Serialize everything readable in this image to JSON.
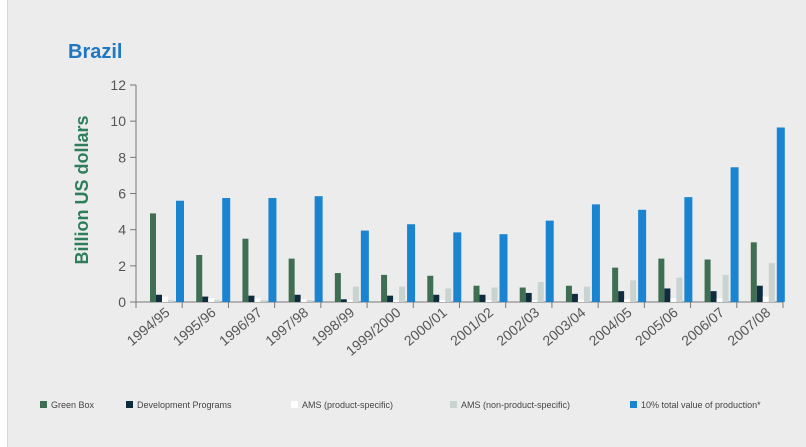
{
  "colors": {
    "title": "#1f78c1",
    "axis_label": "#2e7d5b",
    "green_box": "#3f6e52",
    "development_programs": "#0f2c3f",
    "ams_product_specific": "#ffffff",
    "ams_non_product_specific": "#c9d3d0",
    "ten_percent_total": "#1a84d0"
  },
  "chart_data": {
    "type": "bar",
    "title": "Brazil",
    "xlabel": "",
    "ylabel": "Billion US dollars",
    "ylim": [
      0,
      12
    ],
    "yticks": [
      0,
      2,
      4,
      6,
      8,
      10,
      12
    ],
    "grid": false,
    "legend_position": "bottom",
    "categories": [
      "1994/95",
      "1995/96",
      "1996/97",
      "1997/98",
      "1998/99",
      "1999/2000",
      "2000/01",
      "2001/02",
      "2002/03",
      "2003/04",
      "2004/05",
      "2005/06",
      "2006/07",
      "2007/08"
    ],
    "series": [
      {
        "name": "Green Box",
        "values": [
          4.9,
          2.6,
          3.5,
          2.4,
          1.6,
          1.5,
          1.45,
          0.9,
          0.8,
          0.9,
          1.9,
          2.4,
          2.35,
          3.3
        ]
      },
      {
        "name": "Development Programs",
        "values": [
          0.4,
          0.3,
          0.35,
          0.4,
          0.15,
          0.35,
          0.4,
          0.4,
          0.5,
          0.45,
          0.6,
          0.75,
          0.6,
          0.9
        ]
      },
      {
        "name": "AMS (product-specific)",
        "values": [
          0.3,
          0.2,
          0.2,
          0.15,
          0.1,
          0.1,
          0.1,
          0.1,
          0.1,
          0.1,
          0.15,
          0.2,
          0.2,
          0.3
        ]
      },
      {
        "name": "AMS (non-product-specific)",
        "values": [
          0.1,
          0.1,
          0.1,
          0.1,
          0.85,
          0.85,
          0.75,
          0.8,
          1.1,
          0.85,
          1.2,
          1.35,
          1.5,
          2.15
        ]
      },
      {
        "name": "10% total value of production*",
        "values": [
          5.6,
          5.75,
          5.75,
          5.85,
          3.95,
          4.3,
          3.85,
          3.75,
          4.5,
          5.4,
          5.1,
          5.8,
          7.45,
          9.65
        ]
      }
    ]
  }
}
